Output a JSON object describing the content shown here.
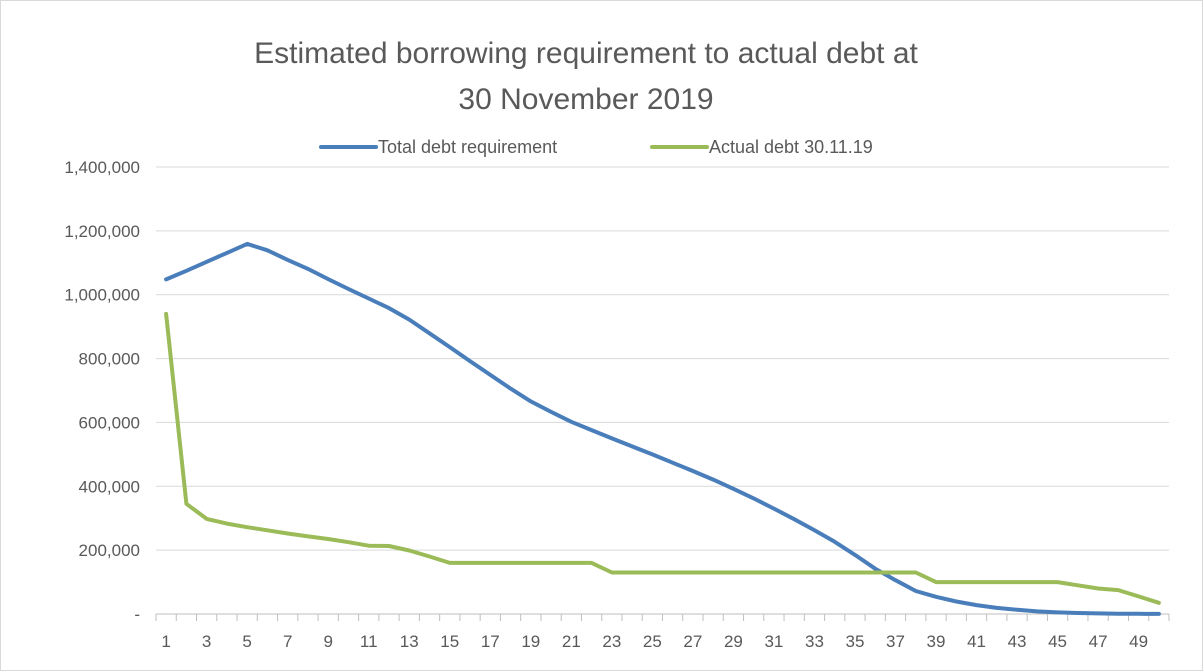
{
  "chart_data": {
    "type": "line",
    "title_line1": "Estimated borrowing requirement to actual debt at",
    "title_line2": "30 November 2019",
    "legend_position": "top",
    "grid": true,
    "ylim": [
      0,
      1400000
    ],
    "y_ticks": [
      {
        "value": 0,
        "label": "-"
      },
      {
        "value": 200000,
        "label": "200,000"
      },
      {
        "value": 400000,
        "label": "400,000"
      },
      {
        "value": 600000,
        "label": "600,000"
      },
      {
        "value": 800000,
        "label": "800,000"
      },
      {
        "value": 1000000,
        "label": "1,000,000"
      },
      {
        "value": 1200000,
        "label": "1,200,000"
      },
      {
        "value": 1400000,
        "label": "1,400,000"
      }
    ],
    "x": [
      1,
      2,
      3,
      4,
      5,
      6,
      7,
      8,
      9,
      10,
      11,
      12,
      13,
      14,
      15,
      16,
      17,
      18,
      19,
      20,
      21,
      22,
      23,
      24,
      25,
      26,
      27,
      28,
      29,
      30,
      31,
      32,
      33,
      34,
      35,
      36,
      37,
      38,
      39,
      40,
      41,
      42,
      43,
      44,
      45,
      46,
      47,
      48,
      49,
      50
    ],
    "x_tick_labels": [
      "1",
      "3",
      "5",
      "7",
      "9",
      "11",
      "13",
      "15",
      "17",
      "19",
      "21",
      "23",
      "25",
      "27",
      "29",
      "31",
      "33",
      "35",
      "37",
      "39",
      "41",
      "43",
      "45",
      "47",
      "49"
    ],
    "series": [
      {
        "name": "Total debt requirement",
        "color": "#4a7ebb",
        "values": [
          1048000,
          1075000,
          1103000,
          1131000,
          1159000,
          1139000,
          1109000,
          1081000,
          1049000,
          1018000,
          988000,
          958000,
          922000,
          879000,
          836000,
          792000,
          749000,
          706000,
          666000,
          633000,
          602000,
          576000,
          550000,
          525000,
          500000,
          474000,
          448000,
          421000,
          392000,
          362000,
          330000,
          297000,
          262000,
          226000,
          185000,
          142000,
          106000,
          72000,
          54000,
          39000,
          28000,
          19000,
          13000,
          8000,
          5000,
          3000,
          2000,
          1000,
          500,
          200
        ]
      },
      {
        "name": "Actual debt 30.11.19",
        "color": "#9bbb59",
        "values": [
          940000,
          345000,
          298000,
          283000,
          272000,
          262000,
          252000,
          243000,
          235000,
          225000,
          214000,
          213000,
          199000,
          180000,
          160000,
          160000,
          160000,
          160000,
          160000,
          160000,
          160000,
          160000,
          130000,
          130000,
          130000,
          130000,
          130000,
          130000,
          130000,
          130000,
          130000,
          130000,
          130000,
          130000,
          130000,
          130000,
          130000,
          130000,
          100000,
          100000,
          100000,
          100000,
          100000,
          100000,
          100000,
          90000,
          80000,
          75000,
          55000,
          35000
        ]
      }
    ]
  }
}
